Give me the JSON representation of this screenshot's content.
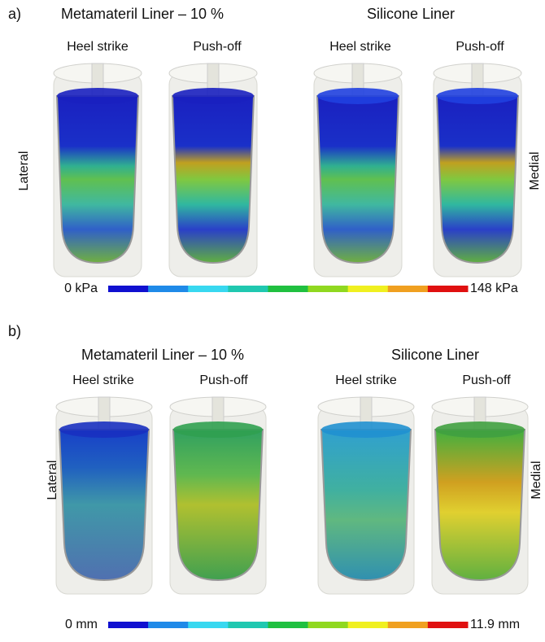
{
  "panels": [
    {
      "label": "a)",
      "groups": [
        {
          "title": "Metamateril Liner – 10 %",
          "phases": [
            "Heel strike",
            "Push-off"
          ]
        },
        {
          "title": "Silicone Liner",
          "phases": [
            "Heel strike",
            "Push-off"
          ]
        }
      ],
      "side_left": "Lateral",
      "side_right": "Medial",
      "colorbar": {
        "min_label": "0 kPa",
        "max_label": "148 kPa"
      }
    },
    {
      "label": "b)",
      "groups": [
        {
          "title": "Metamateril Liner – 10 %",
          "phases": [
            "Heel strike",
            "Push-off"
          ]
        },
        {
          "title": "Silicone Liner",
          "phases": [
            "Heel strike",
            "Push-off"
          ]
        }
      ],
      "side_left": "Lateral",
      "side_right": "Medial",
      "colorbar": {
        "min_label": "0 mm",
        "max_label": "11.9 mm"
      }
    }
  ],
  "colormap": [
    "#1010d0",
    "#1f8ae8",
    "#38d8f0",
    "#20c8b0",
    "#20c040",
    "#90d820",
    "#f0f020",
    "#f0a020",
    "#e01010"
  ]
}
